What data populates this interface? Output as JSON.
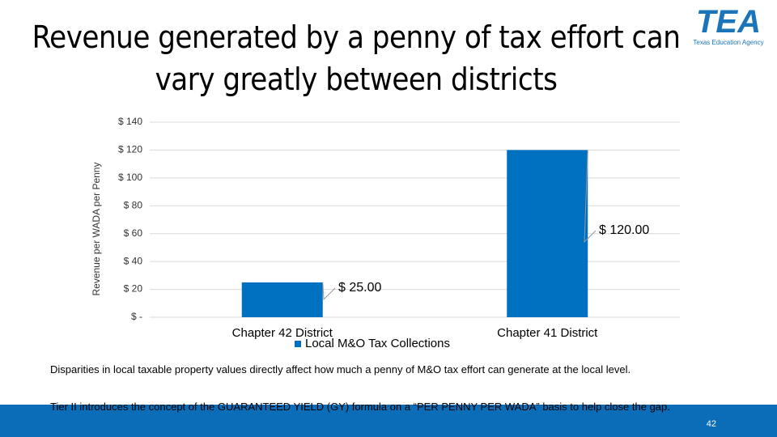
{
  "logo": {
    "text": "TEA",
    "subtitle": "Texas Education Agency"
  },
  "chart_data": {
    "type": "bar",
    "title": "Revenue generated by a penny of tax effort can vary greatly between districts",
    "y_label": "Revenue per WADA per Penny",
    "categories": [
      "Chapter 42 District",
      "Chapter 41 District"
    ],
    "series": [
      {
        "name": "Local M&O Tax Collections",
        "color": "#0070c0",
        "values": [
          25,
          120
        ],
        "value_labels": [
          "$ 25.00",
          "$ 120.00"
        ]
      }
    ],
    "ylim": [
      0,
      140
    ],
    "yticks": [
      {
        "value": 0,
        "label": "$ -"
      },
      {
        "value": 20,
        "label": "$ 20"
      },
      {
        "value": 40,
        "label": "$ 40"
      },
      {
        "value": 60,
        "label": "$ 60"
      },
      {
        "value": 80,
        "label": "$ 80"
      },
      {
        "value": 100,
        "label": "$ 100"
      },
      {
        "value": 120,
        "label": "$ 120"
      },
      {
        "value": 140,
        "label": "$ 140"
      }
    ],
    "grid": true
  },
  "notes": [
    "Disparities in local taxable property values directly affect how much a penny of M&O tax effort can generate at the local level.",
    "Tier II introduces the concept of the GUARANTEED YIELD (GY) formula on a “PER PENNY PER WADA” basis to help close the gap."
  ],
  "page_number": "42"
}
